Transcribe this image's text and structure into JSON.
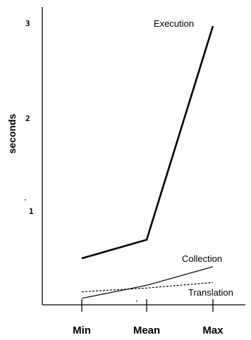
{
  "chart_data": {
    "type": "line",
    "categories": [
      "Min",
      "Mean",
      "Max"
    ],
    "ylabel": "seconds",
    "y_ticks": [
      "1",
      "2",
      "3"
    ],
    "ylim": [
      0,
      3.25
    ],
    "grid": false,
    "series": [
      {
        "name": "Execution",
        "values": [
          0.5,
          0.7,
          3.0
        ],
        "style": "solid-bold"
      },
      {
        "name": "Collection",
        "values": [
          0.07,
          0.21,
          0.41
        ],
        "style": "solid"
      },
      {
        "name": "Translation",
        "values": [
          0.14,
          0.18,
          0.24
        ],
        "style": "dashed"
      }
    ]
  }
}
